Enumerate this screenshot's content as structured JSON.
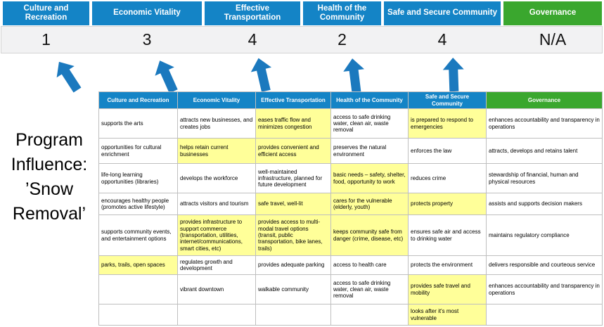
{
  "program": {
    "lines": [
      "Program",
      "Influence:",
      "’Snow",
      "Removal’"
    ]
  },
  "top": {
    "categories": [
      {
        "label": "Culture and Recreation",
        "score": "1"
      },
      {
        "label": "Economic Vitality",
        "score": "3"
      },
      {
        "label": "Effective Transportation",
        "score": "4"
      },
      {
        "label": "Health of the Community",
        "score": "2"
      },
      {
        "label": "Safe and Secure Community",
        "score": "4"
      },
      {
        "label": "Governance",
        "score": "N/A"
      }
    ]
  },
  "matrix": {
    "headers": [
      "Culture and Recreation",
      "Economic Vitality",
      "Effective Transportation",
      "Health of the Community",
      "Safe and Secure Community",
      "Governance"
    ],
    "rows": [
      [
        {
          "text": "supports the arts",
          "highlight": false
        },
        {
          "text": "attracts new businesses, and creates jobs",
          "highlight": false
        },
        {
          "text": "eases traffic flow and minimizes congestion",
          "highlight": true
        },
        {
          "text": "access to safe drinking water, clean air, waste removal",
          "highlight": false
        },
        {
          "text": "is prepared to respond to emergencies",
          "highlight": true
        },
        {
          "text": "enhances accountability and transparency in operations",
          "highlight": false
        }
      ],
      [
        {
          "text": "opportunities for cultural enrichment",
          "highlight": false
        },
        {
          "text": "helps retain current businesses",
          "highlight": true
        },
        {
          "text": "provides convenient and efficient access",
          "highlight": true
        },
        {
          "text": "preserves the natural environment",
          "highlight": false
        },
        {
          "text": "enforces the law",
          "highlight": false
        },
        {
          "text": "attracts, develops and retains talent",
          "highlight": false
        }
      ],
      [
        {
          "text": "life-long learning opportunities (libraries)",
          "highlight": false
        },
        {
          "text": "develops the workforce",
          "highlight": false
        },
        {
          "text": "well-maintained infrastructure, planned for future development",
          "highlight": false
        },
        {
          "text": "basic needs – safety, shelter, food, opportunity to work",
          "highlight": true
        },
        {
          "text": "reduces crime",
          "highlight": false
        },
        {
          "text": "stewardship of financial, human and physical resources",
          "highlight": false
        }
      ],
      [
        {
          "text": "encourages healthy people (promotes active lifestyle)",
          "highlight": false
        },
        {
          "text": "attracts visitors and tourism",
          "highlight": false
        },
        {
          "text": "safe travel, well-lit",
          "highlight": true
        },
        {
          "text": "cares for the vulnerable (elderly, youth)",
          "highlight": true
        },
        {
          "text": "protects property",
          "highlight": true
        },
        {
          "text": "assists and supports decision makers",
          "highlight": false
        }
      ],
      [
        {
          "text": "supports community events, and entertainment options",
          "highlight": false
        },
        {
          "text": "provides infrastructure to support commerce (transportation, utilities, internet/communications, smart cities, etc)",
          "highlight": true
        },
        {
          "text": "provides access to multi-modal travel options (transit, public transportation, bike lanes, trails)",
          "highlight": true
        },
        {
          "text": "keeps community safe from danger (crime, disease, etc)",
          "highlight": true
        },
        {
          "text": "ensures safe air and access to drinking water",
          "highlight": false
        },
        {
          "text": "maintains regulatory compliance",
          "highlight": false
        }
      ],
      [
        {
          "text": "parks, trails, open spaces",
          "highlight": true
        },
        {
          "text": "regulates growth and development",
          "highlight": false
        },
        {
          "text": "provides adequate parking",
          "highlight": false
        },
        {
          "text": "access to health care",
          "highlight": false
        },
        {
          "text": "protects the environment",
          "highlight": false
        },
        {
          "text": "delivers responsible and courteous service",
          "highlight": false
        }
      ],
      [
        {
          "text": "",
          "highlight": false
        },
        {
          "text": "vibrant downtown",
          "highlight": false
        },
        {
          "text": "walkable community",
          "highlight": false
        },
        {
          "text": "access to safe drinking water, clean air, waste removal",
          "highlight": false
        },
        {
          "text": "provides safe travel and mobility",
          "highlight": true
        },
        {
          "text": "enhances accountability and transparency in operations",
          "highlight": false
        }
      ],
      [
        {
          "text": "",
          "highlight": false
        },
        {
          "text": "",
          "highlight": false
        },
        {
          "text": "",
          "highlight": false
        },
        {
          "text": "",
          "highlight": false
        },
        {
          "text": "looks after it's most vulnerable",
          "highlight": true
        },
        {
          "text": "",
          "highlight": false
        }
      ]
    ]
  },
  "colors": {
    "category_blue": "#1484C6",
    "governance_green": "#3AA72E",
    "highlight_yellow": "#FFFF99",
    "arrow_blue": "#1B79BE",
    "score_band_gray": "#F2F2F3"
  }
}
